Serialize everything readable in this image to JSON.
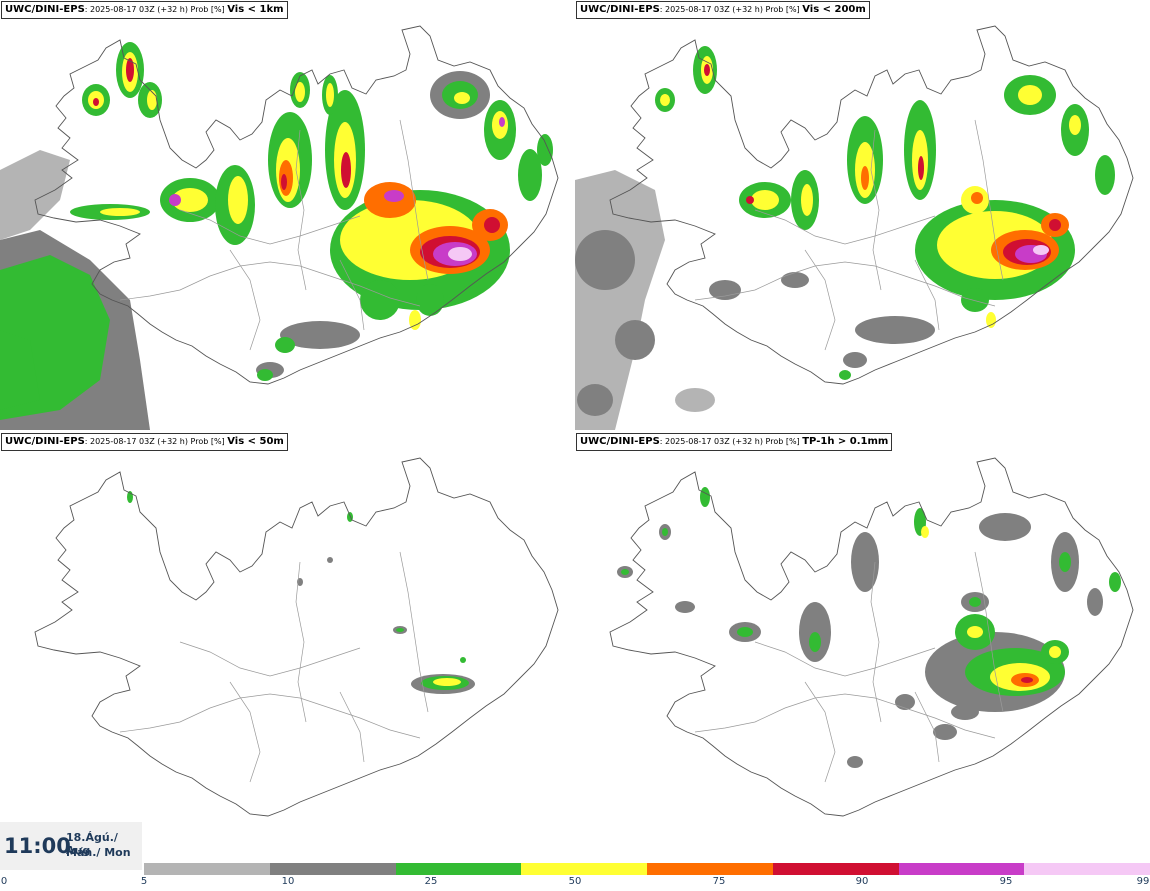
{
  "panels": [
    {
      "model": "UWC/DINI-EPS",
      "meta": ": 2025-08-17 03Z (+32 h) Prob [%] ",
      "variable": "Vis < 1km"
    },
    {
      "model": "UWC/DINI-EPS",
      "meta": ": 2025-08-17 03Z (+32 h) Prob [%] ",
      "variable": "Vis < 200m"
    },
    {
      "model": "UWC/DINI-EPS",
      "meta": ": 2025-08-17 03Z (+32 h) Prob [%] ",
      "variable": "Vis < 50m"
    },
    {
      "model": "UWC/DINI-EPS",
      "meta": ": 2025-08-17 03Z (+32 h) Prob [%] ",
      "variable": "TP-1h > 0.1mm"
    }
  ],
  "valid_time": {
    "time": "11:00",
    "date": "18.Ágú./ Aug",
    "weekday": "Mán./ Mon"
  },
  "colorbar": {
    "ticks": [
      "0",
      "5",
      "10",
      "25",
      "50",
      "75",
      "90",
      "95",
      "99"
    ],
    "colors": [
      "#b4b4b4",
      "#808080",
      "#33bb33",
      "#ffff33",
      "#ff6e00",
      "#d00f32",
      "#c83cc8",
      "#f5c8f5"
    ]
  }
}
